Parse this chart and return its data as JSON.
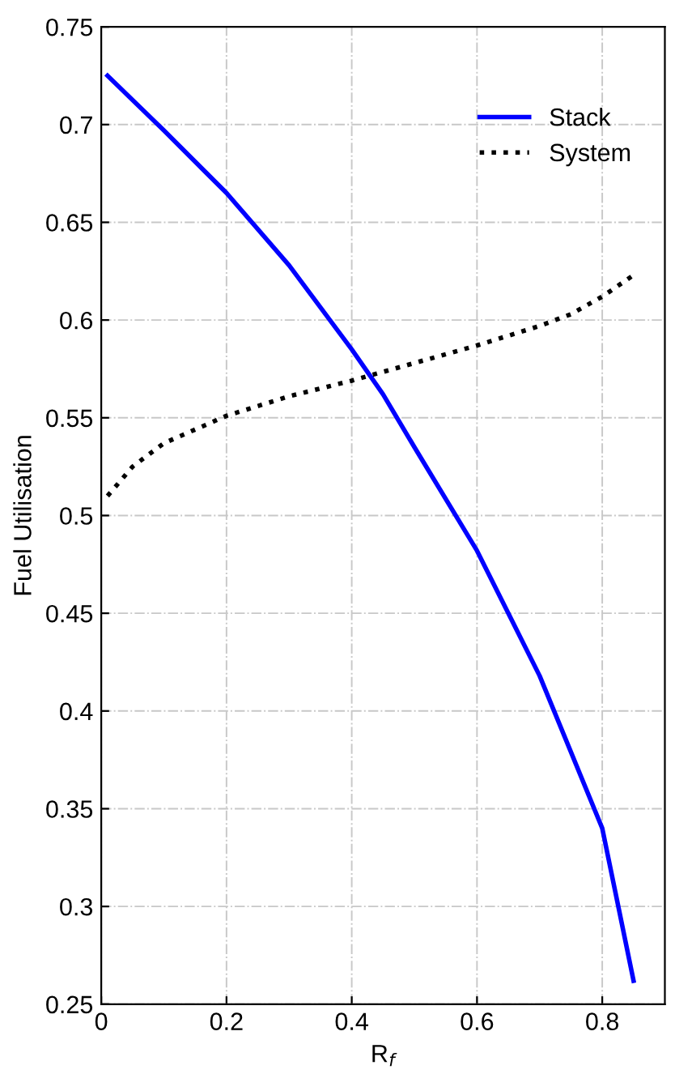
{
  "chart_data": {
    "type": "line",
    "xlabel": "R$_{f}$",
    "ylabel": "Fuel Utilisation",
    "xlim": [
      0,
      0.9
    ],
    "ylim": [
      0.25,
      0.75
    ],
    "xticks": [
      0,
      0.2,
      0.4,
      0.6,
      0.8
    ],
    "yticks": [
      0.25,
      0.3,
      0.35,
      0.4,
      0.45,
      0.5,
      0.55,
      0.6,
      0.65,
      0.7,
      0.75
    ],
    "grid": true,
    "legend": "top right",
    "marker": "none",
    "series": [
      {
        "name": "Stack",
        "color": "#0000ff",
        "line_style": "solid",
        "x": [
          0.01,
          0.1,
          0.2,
          0.3,
          0.4,
          0.45,
          0.5,
          0.6,
          0.7,
          0.8,
          0.85
        ],
        "values": [
          0.725,
          0.697,
          0.665,
          0.628,
          0.585,
          0.562,
          0.535,
          0.482,
          0.418,
          0.34,
          0.262
        ]
      },
      {
        "name": "System",
        "color": "#000000",
        "line_style": "dotted",
        "x": [
          0.01,
          0.05,
          0.1,
          0.2,
          0.3,
          0.4,
          0.5,
          0.6,
          0.7,
          0.75,
          0.8,
          0.85
        ],
        "values": [
          0.51,
          0.525,
          0.537,
          0.551,
          0.561,
          0.569,
          0.578,
          0.587,
          0.597,
          0.603,
          0.612,
          0.623
        ]
      }
    ]
  }
}
